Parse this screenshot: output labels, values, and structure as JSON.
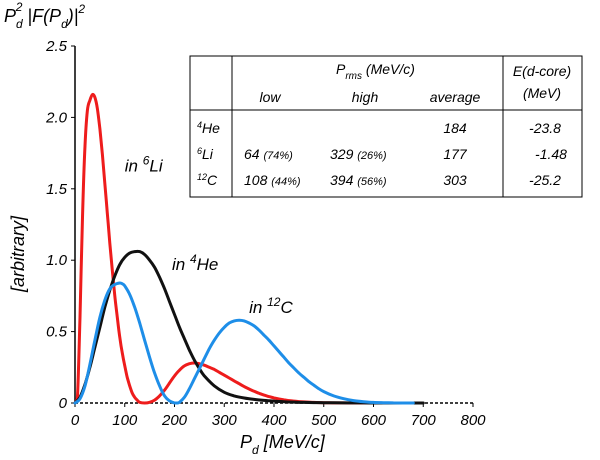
{
  "chart_data": {
    "type": "line",
    "title": "P_d² |F(P_d)|²",
    "title_parts": {
      "p": "P",
      "sub_d": "d",
      "sup2": "2",
      "f_open": " |F(P",
      "sub_d2": "d",
      "f_close": ")|",
      "sup2b": "2"
    },
    "xlabel": "P_d [MeV/c]",
    "xlabel_parts": {
      "p": "P",
      "sub": "d",
      "rest": " [MeV/c]"
    },
    "ylabel": "[arbitrary]",
    "xlim": [
      0,
      800
    ],
    "ylim": [
      0,
      2.5
    ],
    "xticks": [
      "0",
      "100",
      "200",
      "300",
      "400",
      "500",
      "600",
      "700",
      "800"
    ],
    "xtick_values": [
      0,
      100,
      200,
      300,
      400,
      500,
      600,
      700,
      800
    ],
    "yticks": [
      "0",
      "0.5",
      "1.0",
      "1.5",
      "2.0",
      "2.5"
    ],
    "ytick_values": [
      0,
      0.5,
      1.0,
      1.5,
      2.0,
      2.5
    ],
    "grid": false,
    "legend": "none",
    "annotations": [
      {
        "pre": "in ",
        "sup": "6",
        "post": "Li",
        "x": 100,
        "y": 1.62
      },
      {
        "pre": "in ",
        "sup": "4",
        "post": "He",
        "x": 195,
        "y": 0.93
      },
      {
        "pre": "in ",
        "sup": "12",
        "post": "C",
        "x": 350,
        "y": 0.63
      }
    ],
    "series": [
      {
        "color": "#ee1c1c",
        "x": [
          0,
          5,
          10,
          15,
          20,
          25,
          30,
          35,
          40,
          45,
          50,
          55,
          60,
          65,
          70,
          75,
          80,
          85,
          90,
          95,
          100,
          105,
          110,
          115,
          120,
          125,
          130,
          140,
          150,
          160,
          170,
          180,
          190,
          200,
          210,
          220,
          230,
          240,
          250,
          260,
          270,
          280,
          290,
          300,
          310,
          320,
          330,
          340,
          350,
          360,
          370,
          380,
          390,
          400,
          410,
          420,
          430,
          440,
          450,
          460,
          470,
          480,
          490,
          500,
          520,
          540,
          560,
          580,
          600,
          620,
          640,
          660,
          680
        ],
        "y": [
          0,
          0.05,
          0.6,
          1.3,
          1.8,
          2.05,
          2.12,
          2.16,
          2.14,
          2.06,
          1.92,
          1.74,
          1.54,
          1.33,
          1.12,
          0.93,
          0.75,
          0.6,
          0.46,
          0.35,
          0.26,
          0.18,
          0.12,
          0.07,
          0.04,
          0.02,
          0.005,
          0,
          0.005,
          0.02,
          0.05,
          0.09,
          0.14,
          0.19,
          0.23,
          0.26,
          0.275,
          0.28,
          0.275,
          0.265,
          0.25,
          0.235,
          0.215,
          0.195,
          0.175,
          0.155,
          0.135,
          0.115,
          0.098,
          0.082,
          0.068,
          0.055,
          0.045,
          0.036,
          0.028,
          0.022,
          0.017,
          0.013,
          0.01,
          0.008,
          0.006,
          0.004,
          0.003,
          0.002,
          0.001,
          0.0005,
          0,
          0,
          0,
          0,
          0,
          0,
          0
        ]
      },
      {
        "color": "#111111",
        "x": [
          0,
          10,
          20,
          30,
          40,
          50,
          60,
          70,
          80,
          90,
          100,
          110,
          120,
          130,
          140,
          150,
          160,
          170,
          180,
          190,
          200,
          210,
          220,
          230,
          240,
          250,
          260,
          280,
          300,
          320,
          340,
          360,
          380,
          400,
          420,
          440,
          460,
          480,
          500,
          520,
          540,
          560,
          580,
          600,
          620,
          640,
          660,
          680,
          700
        ],
        "y": [
          0,
          0.04,
          0.13,
          0.25,
          0.39,
          0.53,
          0.67,
          0.79,
          0.89,
          0.97,
          1.02,
          1.05,
          1.06,
          1.06,
          1.04,
          1.0,
          0.95,
          0.88,
          0.8,
          0.71,
          0.62,
          0.53,
          0.45,
          0.37,
          0.3,
          0.24,
          0.19,
          0.12,
          0.075,
          0.05,
          0.035,
          0.025,
          0.018,
          0.013,
          0.009,
          0.006,
          0.004,
          0.003,
          0.002,
          0.0015,
          0.001,
          0.0007,
          0.0005,
          0.0003,
          0.0002,
          0.0001,
          5e-05,
          2e-05,
          0
        ]
      },
      {
        "color": "#1e8ee8",
        "x": [
          0,
          10,
          20,
          30,
          40,
          50,
          60,
          70,
          80,
          90,
          95,
          100,
          110,
          120,
          130,
          140,
          150,
          160,
          170,
          180,
          190,
          200,
          205,
          210,
          220,
          230,
          240,
          250,
          260,
          270,
          280,
          290,
          300,
          310,
          320,
          330,
          340,
          350,
          360,
          370,
          380,
          390,
          400,
          410,
          420,
          430,
          440,
          450,
          460,
          470,
          480,
          490,
          500,
          520,
          540,
          560,
          580,
          600,
          620,
          640,
          660,
          680
        ],
        "y": [
          0,
          0.03,
          0.12,
          0.27,
          0.44,
          0.6,
          0.72,
          0.8,
          0.83,
          0.84,
          0.835,
          0.82,
          0.76,
          0.67,
          0.56,
          0.44,
          0.32,
          0.21,
          0.12,
          0.05,
          0.015,
          0.0,
          0.0,
          0.005,
          0.04,
          0.1,
          0.17,
          0.24,
          0.31,
          0.38,
          0.44,
          0.49,
          0.53,
          0.56,
          0.575,
          0.58,
          0.575,
          0.56,
          0.54,
          0.51,
          0.475,
          0.44,
          0.4,
          0.36,
          0.32,
          0.28,
          0.245,
          0.21,
          0.18,
          0.15,
          0.125,
          0.1,
          0.08,
          0.05,
          0.03,
          0.017,
          0.009,
          0.004,
          0.002,
          0.0008,
          0.0003,
          0
        ]
      }
    ],
    "table": {
      "prms_label": {
        "p": "P",
        "sub": "rms",
        "rest": "  (MeV/c)"
      },
      "energy_header": [
        "E(d-core)",
        "(MeV)"
      ],
      "subheaders": [
        "low",
        "high",
        "average"
      ],
      "rows": [
        {
          "sup": "4",
          "nuc": "He",
          "low": "",
          "low_pct": "",
          "high": "",
          "high_pct": "",
          "avg": "184",
          "energy": "-23.8"
        },
        {
          "sup": "6",
          "nuc": "Li",
          "low": "64",
          "low_pct": "(74%)",
          "high": "329",
          "high_pct": "(26%)",
          "avg": "177",
          "energy": "-1.48"
        },
        {
          "sup": "12",
          "nuc": "C",
          "low": "108",
          "low_pct": "(44%)",
          "high": "394",
          "high_pct": "(56%)",
          "avg": "303",
          "energy": "-25.2"
        }
      ]
    }
  }
}
